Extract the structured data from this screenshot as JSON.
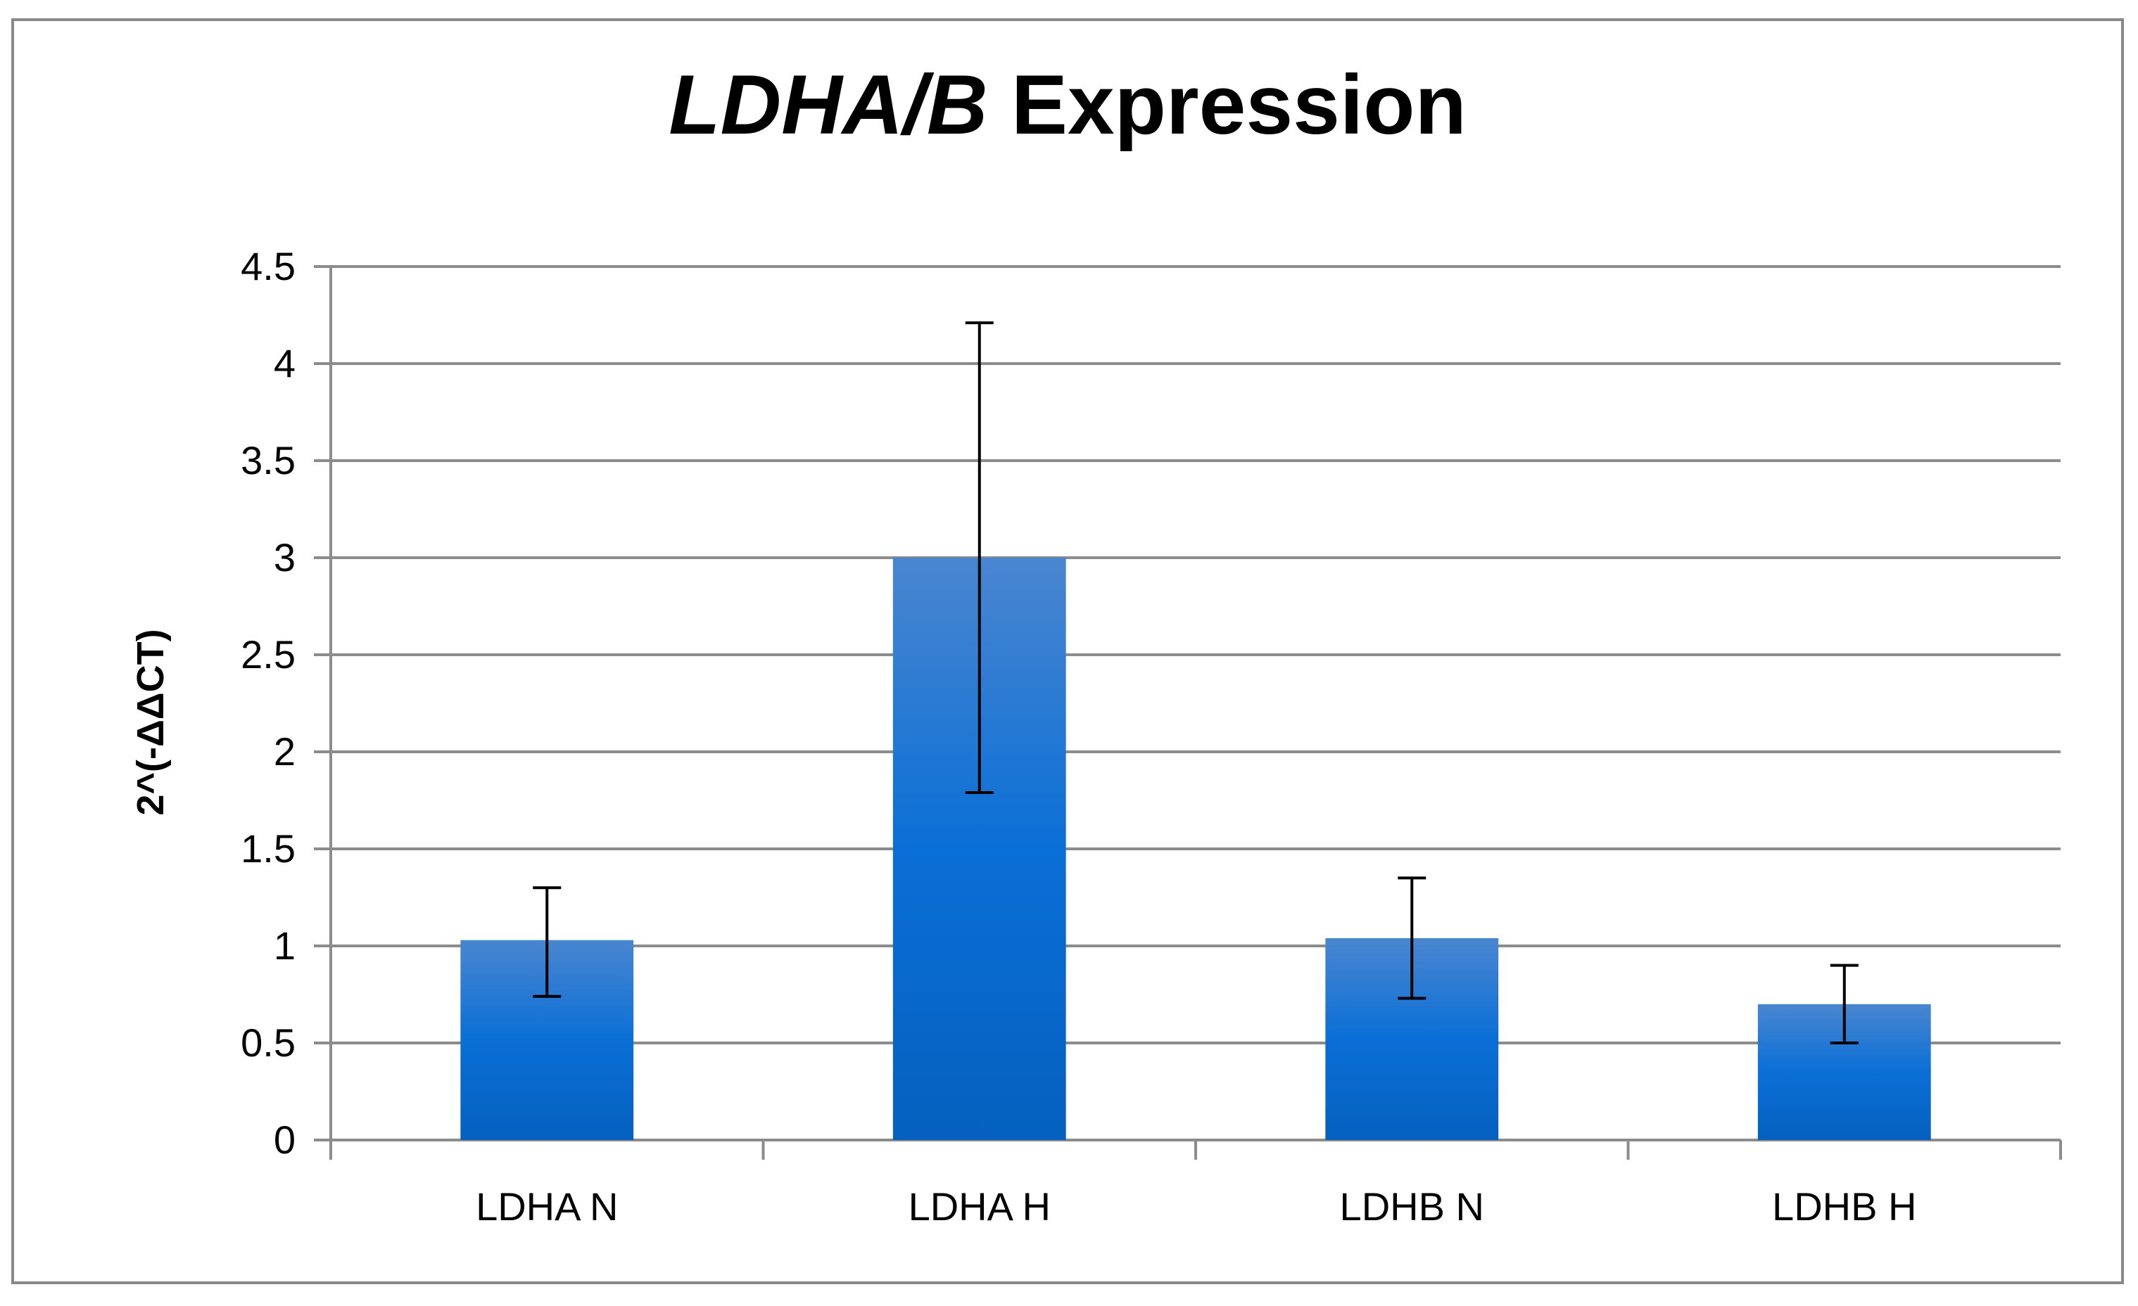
{
  "chart_data": {
    "type": "bar",
    "title": {
      "italic": "LDHA/B",
      "regular": " Expression"
    },
    "xlabel": "",
    "ylabel": "2^(-ΔΔCT)",
    "categories": [
      "LDHA N",
      "LDHA H",
      "LDHB N",
      "LDHB H"
    ],
    "series": [
      {
        "values": [
          1.03,
          3.0,
          1.04,
          0.7
        ],
        "error_low": [
          0.74,
          1.79,
          0.73,
          0.5
        ],
        "error_high": [
          1.3,
          4.21,
          1.35,
          0.9
        ]
      }
    ],
    "ylim": [
      0,
      4.5
    ],
    "yticks": [
      "0",
      "0.5",
      "1",
      "1.5",
      "2",
      "2.5",
      "3",
      "3.5",
      "4",
      "4.5"
    ],
    "grid": true,
    "legend": "none",
    "colors": {
      "bar_top": "#4a86d0",
      "bar_mid": "#0a6fd6",
      "bar_bottom": "#0560bf",
      "grid": "#8c8c8c",
      "error_bar": "#000000"
    }
  }
}
